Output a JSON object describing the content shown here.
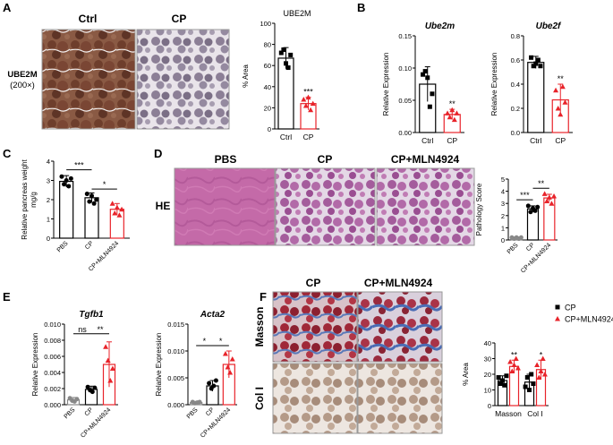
{
  "panels": {
    "A": "A",
    "B": "B",
    "C": "C",
    "D": "D",
    "E": "E",
    "F": "F"
  },
  "panel_a": {
    "col_ctrl": "Ctrl",
    "col_cp": "CP",
    "row_label_1": "UBE2M",
    "row_label_2": "(200×)"
  },
  "panel_d": {
    "col_pbs": "PBS",
    "col_cp": "CP",
    "col_mln": "CP+MLN4924",
    "row_label": "HE"
  },
  "panel_f": {
    "col_cp": "CP",
    "col_mln": "CP+MLN4924",
    "row_masson": "Masson",
    "row_col": "Col I"
  },
  "colors": {
    "black_series": "#000000",
    "red_series": "#e8232a"
  },
  "chart_data": [
    {
      "id": "A-chart",
      "type": "bar",
      "title": "UBE2M",
      "ylabel": "% Area",
      "categories": [
        "Ctrl",
        "CP"
      ],
      "ylim": [
        0,
        100
      ],
      "yticks": [
        "0",
        "20",
        "40",
        "60",
        "80",
        "100"
      ],
      "values": [
        67,
        24
      ],
      "errors": [
        10,
        6
      ],
      "points": [
        [
          72,
          75,
          62,
          58,
          70
        ],
        [
          28,
          22,
          30,
          18,
          24
        ]
      ],
      "colors": [
        "#000000",
        "#e8232a"
      ],
      "sig": [
        "",
        "***"
      ]
    },
    {
      "id": "B1-chart",
      "type": "bar",
      "title": "Ube2m",
      "ylabel": "Relative Expression",
      "categories": [
        "Ctrl",
        "CP"
      ],
      "ylim": [
        0,
        0.15
      ],
      "yticks": [
        "0.00",
        "0.05",
        "0.10",
        "0.15"
      ],
      "values": [
        0.075,
        0.028
      ],
      "errors": [
        0.027,
        0.008
      ],
      "points": [
        [
          0.09,
          0.095,
          0.085,
          0.04,
          0.06
        ],
        [
          0.03,
          0.024,
          0.035,
          0.02,
          0.03
        ]
      ],
      "colors": [
        "#000000",
        "#e8232a"
      ],
      "sig": [
        "",
        "**"
      ]
    },
    {
      "id": "B2-chart",
      "type": "bar",
      "title": "Ube2f",
      "ylabel": "Relative Expression",
      "categories": [
        "Ctrl",
        "CP"
      ],
      "ylim": [
        0,
        0.8
      ],
      "yticks": [
        "0.0",
        "0.2",
        "0.4",
        "0.6",
        "0.8"
      ],
      "values": [
        0.58,
        0.27
      ],
      "errors": [
        0.05,
        0.13
      ],
      "points": [
        [
          0.62,
          0.55,
          0.57,
          0.6,
          0.55
        ],
        [
          0.35,
          0.2,
          0.15,
          0.38,
          0.25
        ]
      ],
      "colors": [
        "#000000",
        "#e8232a"
      ],
      "sig": [
        "",
        "**"
      ]
    },
    {
      "id": "C-chart",
      "type": "bar",
      "ylabel": "Relative pancreas weight",
      "ylabel2": "mg/g",
      "categories": [
        "PBS",
        "CP",
        "CP+MLN4924"
      ],
      "ylim": [
        0,
        4
      ],
      "yticks": [
        "0",
        "1",
        "2",
        "3",
        "4"
      ],
      "values": [
        2.95,
        2.1,
        1.5
      ],
      "errors": [
        0.3,
        0.25,
        0.3
      ],
      "points": [
        [
          3.2,
          2.8,
          3.0,
          2.7,
          3.1
        ],
        [
          2.3,
          1.9,
          2.2,
          1.8,
          2.0
        ],
        [
          1.8,
          1.3,
          1.6,
          1.2,
          1.5
        ]
      ],
      "colors": [
        "#000000",
        "#000000",
        "#e8232a"
      ],
      "brackets": [
        {
          "from": 0,
          "to": 1,
          "label": "***",
          "y": 3.55
        },
        {
          "from": 1,
          "to": 2,
          "label": "*",
          "y": 2.55
        }
      ]
    },
    {
      "id": "D-chart",
      "type": "bar",
      "ylabel": "Pathology Score",
      "categories": [
        "PBS",
        "CP",
        "CP+MLN4924"
      ],
      "ylim": [
        0,
        5
      ],
      "yticks": [
        "0",
        "1",
        "2",
        "3",
        "4",
        "5"
      ],
      "values": [
        0.15,
        2.55,
        3.45
      ],
      "errors": [
        0.1,
        0.25,
        0.3
      ],
      "points": [
        [
          0.2,
          0.1,
          0.2,
          0.1,
          0.2
        ],
        [
          2.8,
          2.3,
          2.6,
          2.4,
          2.7
        ],
        [
          3.8,
          3.2,
          3.5,
          3.0,
          3.6
        ]
      ],
      "colors": [
        "#888888",
        "#000000",
        "#e8232a"
      ],
      "brackets": [
        {
          "from": 0,
          "to": 1,
          "label": "***",
          "y": 3.3
        },
        {
          "from": 1,
          "to": 2,
          "label": "**",
          "y": 4.25
        }
      ]
    },
    {
      "id": "E1-chart",
      "type": "bar",
      "title": "Tgfb1",
      "ylabel": "Relative Expression",
      "categories": [
        "PBS",
        "CP",
        "CP+MLN4924"
      ],
      "ylim": [
        0,
        0.01
      ],
      "yticks": [
        "0.000",
        "0.002",
        "0.004",
        "0.006",
        "0.008",
        "0.010"
      ],
      "values": [
        0.0006,
        0.0019,
        0.005
      ],
      "errors": [
        0.0003,
        0.0004,
        0.0028
      ],
      "points": [
        [
          0.0008,
          0.0005,
          0.0004,
          0.0007
        ],
        [
          0.0022,
          0.0018,
          0.0016,
          0.0021
        ],
        [
          0.0072,
          0.0055,
          0.003,
          0.0045
        ]
      ],
      "colors": [
        "#888888",
        "#000000",
        "#e8232a"
      ],
      "brackets": [
        {
          "from": 0,
          "to": 1,
          "label": "ns",
          "y": 0.0088
        },
        {
          "from": 1,
          "to": 2,
          "label": "**",
          "y": 0.0088
        }
      ]
    },
    {
      "id": "E2-chart",
      "type": "bar",
      "title": "Acta2",
      "ylabel": "Relative Expression",
      "categories": [
        "PBS",
        "CP",
        "CP+MLN4924"
      ],
      "ylim": [
        0,
        0.015
      ],
      "yticks": [
        "0.000",
        "0.005",
        "0.010",
        "0.015"
      ],
      "values": [
        0.0004,
        0.0035,
        0.0075
      ],
      "errors": [
        0.0002,
        0.001,
        0.0025
      ],
      "points": [
        [
          0.0005,
          0.0003,
          0.0004,
          0.0005
        ],
        [
          0.004,
          0.003,
          0.0035,
          0.0045
        ],
        [
          0.0095,
          0.007,
          0.006,
          0.0085
        ]
      ],
      "colors": [
        "#888888",
        "#000000",
        "#e8232a"
      ],
      "brackets": [
        {
          "from": 0,
          "to": 1,
          "label": "*",
          "y": 0.011
        },
        {
          "from": 1,
          "to": 2,
          "label": "*",
          "y": 0.011
        }
      ]
    },
    {
      "id": "F-chart",
      "type": "bar",
      "ylabel": "% Area",
      "categories": [
        "Masson",
        "Col I"
      ],
      "ylim": [
        0,
        40
      ],
      "yticks": [
        "0",
        "10",
        "20",
        "30",
        "40"
      ],
      "series": [
        {
          "name": "CP",
          "values": [
            16,
            15
          ],
          "errors": [
            3,
            5
          ],
          "points": [
            [
              18,
              14,
              16,
              13,
              19
            ],
            [
              12,
              18,
              10,
              20,
              14
            ]
          ],
          "color": "#000000"
        },
        {
          "name": "CP+MLN4924",
          "values": [
            25,
            23
          ],
          "errors": [
            4,
            6
          ],
          "points": [
            [
              28,
              22,
              26,
              30,
              24
            ],
            [
              26,
              18,
              22,
              30,
              20
            ]
          ],
          "color": "#e8232a"
        }
      ],
      "sig": [
        [
          "",
          "**"
        ],
        [
          "",
          "*"
        ]
      ],
      "legend": "top-right"
    }
  ]
}
